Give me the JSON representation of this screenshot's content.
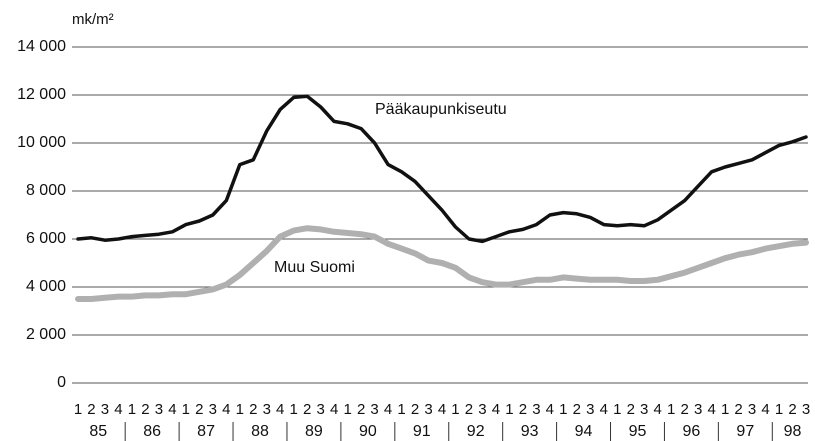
{
  "chart_data": {
    "type": "line",
    "y_axis_label": "mk/m²",
    "categories": [
      "1",
      "2",
      "3",
      "4",
      "1",
      "2",
      "3",
      "4",
      "1",
      "2",
      "3",
      "4",
      "1",
      "2",
      "3",
      "4",
      "1",
      "2",
      "3",
      "4",
      "1",
      "2",
      "3",
      "4",
      "1",
      "2",
      "3",
      "4",
      "1",
      "2",
      "3",
      "4",
      "1",
      "2",
      "3",
      "4",
      "1",
      "2",
      "3",
      "4",
      "1",
      "2",
      "3",
      "4",
      "1",
      "2",
      "3",
      "4",
      "1",
      "2",
      "3",
      "4",
      "1",
      "2",
      "3"
    ],
    "year_groups": [
      "85",
      "86",
      "87",
      "88",
      "89",
      "90",
      "91",
      "92",
      "93",
      "94",
      "95",
      "96",
      "97",
      "98"
    ],
    "series": [
      {
        "name": "Pääkaupunkiseutu",
        "color": "#111111",
        "values": [
          6000,
          6050,
          5950,
          6000,
          6100,
          6150,
          6200,
          6300,
          6600,
          6750,
          7000,
          7600,
          9100,
          9300,
          10500,
          11400,
          11900,
          11950,
          11500,
          10900,
          10800,
          10600,
          10000,
          9100,
          8800,
          8400,
          7800,
          7200,
          6500,
          6000,
          5900,
          6100,
          6300,
          6400,
          6600,
          7000,
          7100,
          7050,
          6900,
          6600,
          6550,
          6600,
          6550,
          6800,
          7200,
          7600,
          8200,
          8800,
          9000,
          9150,
          9300,
          9600,
          9900,
          10050,
          10250
        ]
      },
      {
        "name": "Muu Suomi",
        "color": "#b0b0b0",
        "values": [
          3500,
          3500,
          3550,
          3600,
          3600,
          3650,
          3650,
          3700,
          3700,
          3800,
          3900,
          4100,
          4500,
          5000,
          5500,
          6100,
          6350,
          6450,
          6400,
          6300,
          6250,
          6200,
          6100,
          5800,
          5600,
          5400,
          5100,
          5000,
          4800,
          4400,
          4200,
          4100,
          4100,
          4200,
          4300,
          4300,
          4400,
          4350,
          4300,
          4300,
          4300,
          4250,
          4250,
          4300,
          4450,
          4600,
          4800,
          5000,
          5200,
          5350,
          5450,
          5600,
          5700,
          5800,
          5850
        ]
      }
    ],
    "ylim": [
      0,
      14000
    ],
    "yticks": [
      0,
      {
        "value": 2000,
        "label": "2 000"
      },
      {
        "value": 4000,
        "label": "4 000"
      },
      {
        "value": 6000,
        "label": "6 000"
      },
      {
        "value": 8000,
        "label": "8 000"
      },
      {
        "value": 10000,
        "label": "10 000"
      },
      {
        "value": 12000,
        "label": "12 000"
      },
      {
        "value": 14000,
        "label": "14 000"
      }
    ],
    "grid": true
  }
}
